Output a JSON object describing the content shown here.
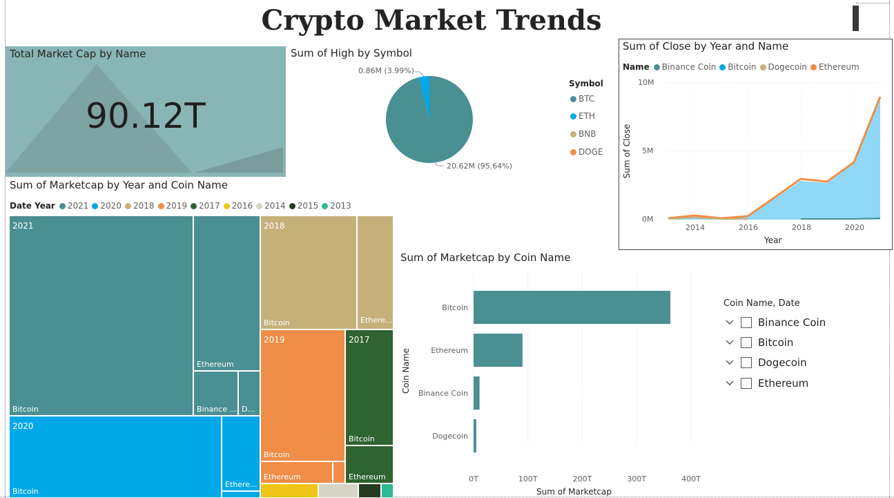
{
  "page": {
    "title": "Crypto Market Trends"
  },
  "card": {
    "title": "Total Market Cap by Name",
    "value": "90.12T",
    "bg_color": "#8ab5b6"
  },
  "pie": {
    "title": "Sum of High by Symbol",
    "label_small": "0.86M (3.99%)",
    "label_large": "20.62M (95.64%)",
    "legend_title": "Symbol",
    "legend": [
      {
        "label": "BTC",
        "color": "#4a8f92"
      },
      {
        "label": "ETH",
        "color": "#00a8e8"
      },
      {
        "label": "BNB",
        "color": "#c5b07a"
      },
      {
        "label": "DOGE",
        "color": "#f08d46"
      }
    ]
  },
  "line_chart": {
    "title": "Sum of Close by Year and Name",
    "legend_title": "Name",
    "legend": [
      {
        "label": "Binance Coin",
        "color": "#4a8f92"
      },
      {
        "label": "Bitcoin",
        "color": "#00a8e8"
      },
      {
        "label": "Dogecoin",
        "color": "#c5b07a"
      },
      {
        "label": "Ethereum",
        "color": "#f08d46"
      }
    ],
    "y_ticks": [
      "10M",
      "5M",
      "0M"
    ],
    "x_ticks": [
      "2014",
      "2016",
      "2018",
      "2020"
    ],
    "x_axis_title": "Year",
    "y_axis_title": "Sum of Close"
  },
  "treemap": {
    "title": "Sum of Marketcap by Year and Coin Name",
    "legend_title": "Date Year",
    "legend": [
      {
        "label": "2021",
        "color": "#4a8f92"
      },
      {
        "label": "2020",
        "color": "#00a8e8"
      },
      {
        "label": "2018",
        "color": "#c5b07a"
      },
      {
        "label": "2019",
        "color": "#f08d46"
      },
      {
        "label": "2017",
        "color": "#2f6330"
      },
      {
        "label": "2016",
        "color": "#f0c419"
      },
      {
        "label": "2014",
        "color": "#d6d4c5"
      },
      {
        "label": "2015",
        "color": "#233b1f"
      },
      {
        "label": "2013",
        "color": "#2fb894"
      }
    ],
    "labels": {
      "y2021": "2021",
      "y2020": "2020",
      "y2018": "2018",
      "y2019": "2019",
      "y2017": "2017",
      "bitcoin": "Bitcoin",
      "ethereum": "Ethereum",
      "ethereum_short": "Ethere...",
      "binance_short": "Binance ...",
      "d_short": "D..."
    }
  },
  "chart_data": {
    "type": "bar",
    "title": "Sum of Marketcap by Coin Name",
    "categories": [
      "Bitcoin",
      "Ethereum",
      "Binance Coin",
      "Dogecoin"
    ],
    "values": [
      362,
      90,
      11,
      5
    ],
    "value_unit": "T",
    "xlabel": "Sum of Marketcap",
    "ylabel": "Coin Name",
    "xlim": [
      0,
      400
    ],
    "x_ticks": [
      "0T",
      "100T",
      "200T",
      "300T",
      "400T"
    ],
    "color": "#4a8f92",
    "grid": true
  },
  "slicer": {
    "title": "Coin Name, Date",
    "items": [
      "Binance Coin",
      "Bitcoin",
      "Dogecoin",
      "Ethereum"
    ]
  }
}
